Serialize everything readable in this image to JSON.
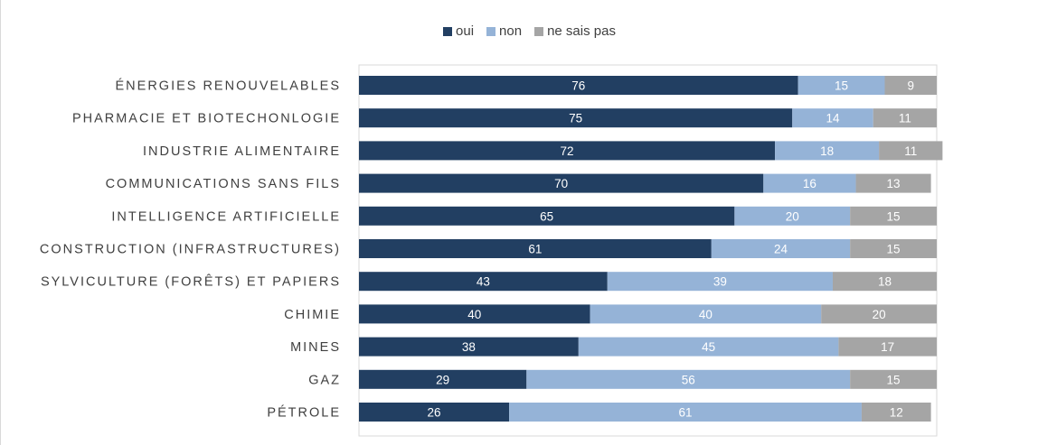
{
  "chart_data": {
    "type": "bar",
    "orientation": "horizontal",
    "stacked": true,
    "title": "",
    "xlabel": "",
    "ylabel": "",
    "xlim": [
      0,
      100
    ],
    "grid": false,
    "legend_position": "top-center",
    "categories": [
      "ÉNERGIES RENOUVELABLES",
      "PHARMACIE ET BIOTECHONLOGIE",
      "INDUSTRIE ALIMENTAIRE",
      "COMMUNICATIONS SANS FILS",
      "INTELLIGENCE ARTIFICIELLE",
      "CONSTRUCTION (INFRASTRUCTURES)",
      "SYLVICULTURE (FORÊTS) ET PAPIERS",
      "CHIMIE",
      "MINES",
      "GAZ",
      "PÉTROLE"
    ],
    "series": [
      {
        "name": "oui",
        "color": "#223F62",
        "values": [
          76,
          75,
          72,
          70,
          65,
          61,
          43,
          40,
          38,
          29,
          26
        ]
      },
      {
        "name": "non",
        "color": "#95B3D7",
        "values": [
          15,
          14,
          18,
          16,
          20,
          24,
          39,
          40,
          45,
          56,
          61
        ]
      },
      {
        "name": "ne sais pas",
        "color": "#A5A5A5",
        "values": [
          9,
          11,
          11,
          13,
          15,
          15,
          18,
          20,
          17,
          15,
          12
        ]
      }
    ]
  }
}
